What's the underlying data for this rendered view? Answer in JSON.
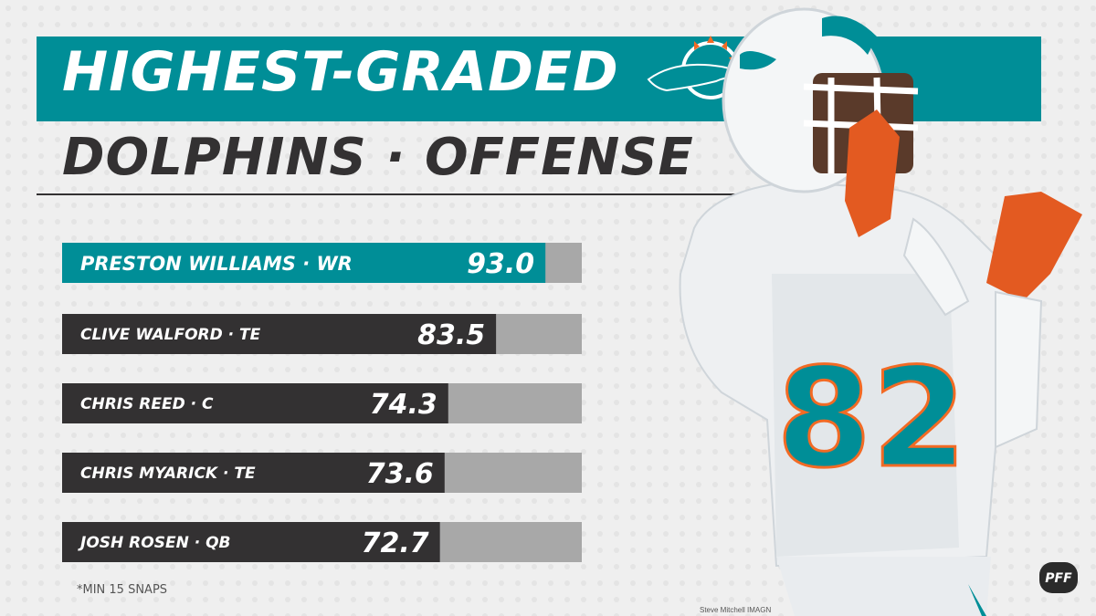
{
  "title": "HIGHEST-GRADED",
  "subtitle": "DOLPHINS · OFFENSE",
  "footnote": "*MIN 15 SNAPS",
  "photo_credit": "Steve Mitchell IMAGN",
  "brand": "PFF",
  "jersey_number": "82",
  "colors": {
    "aqua": "#008e97",
    "dark": "#333132",
    "track": "#a8a8a8",
    "orange": "#f26a24"
  },
  "chart_data": {
    "type": "bar",
    "orientation": "horizontal",
    "categories": [
      "PRESTON WILLIAMS · WR",
      "CLIVE WALFORD · TE",
      "CHRIS REED · C",
      "CHRIS MYARICK · TE",
      "JOSH ROSEN · QB"
    ],
    "values": [
      93.0,
      83.5,
      74.3,
      73.6,
      72.7
    ],
    "value_labels": [
      "93.0",
      "83.5",
      "74.3",
      "73.6",
      "72.7"
    ],
    "xlim": [
      0,
      100
    ],
    "highlight_index": 0,
    "grid": false
  }
}
